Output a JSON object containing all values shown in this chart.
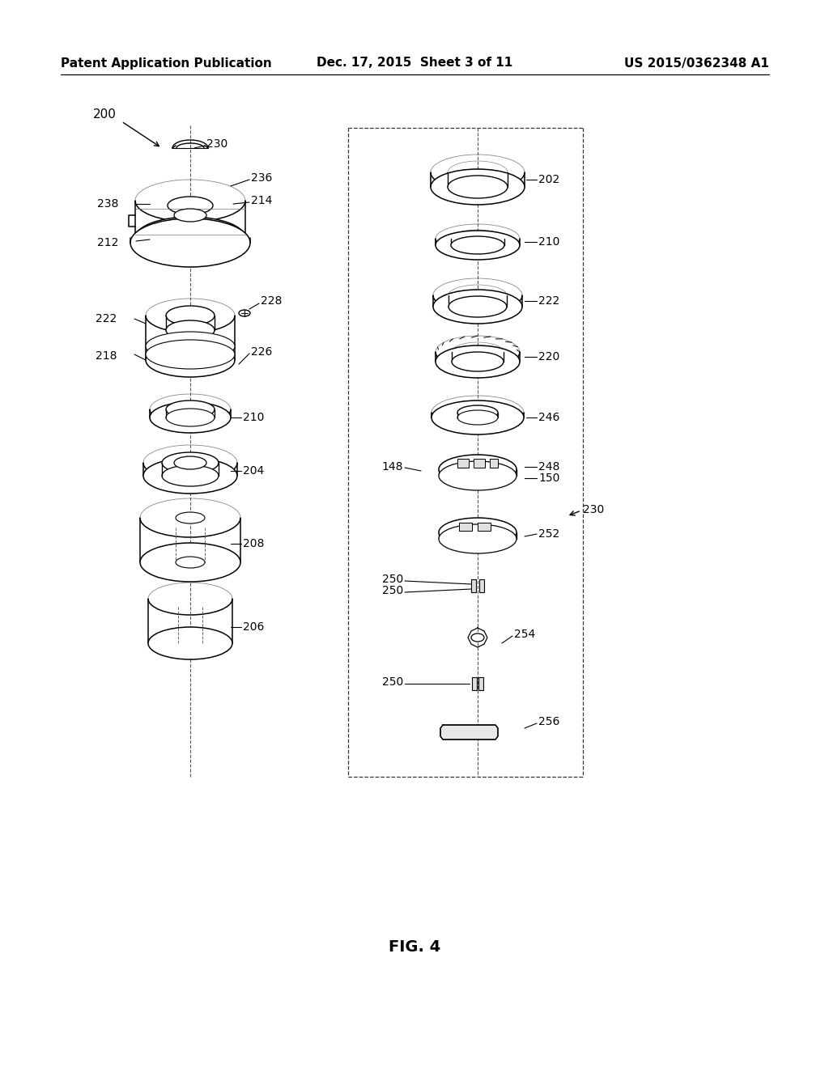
{
  "header_left": "Patent Application Publication",
  "header_center": "Dec. 17, 2015  Sheet 3 of 11",
  "header_right": "US 2015/0362348 A1",
  "figure_label": "FIG. 4",
  "bg_color": "#ffffff",
  "line_color": "#000000",
  "header_font_size": 11,
  "fig_label_font_size": 14
}
